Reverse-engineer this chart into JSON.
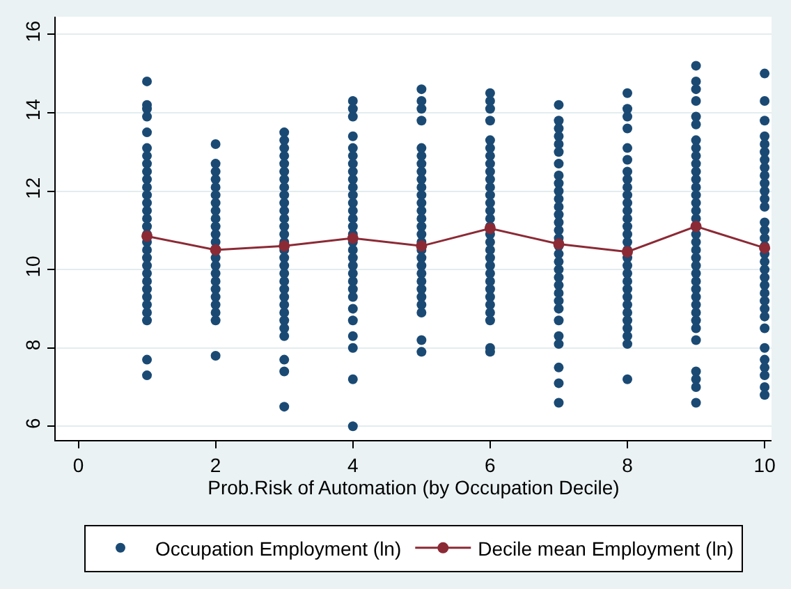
{
  "chart_data": {
    "type": "scatter",
    "xlabel": "Prob.Risk of Automation (by Occupation Decile)",
    "xlim": [
      -0.33,
      10.1
    ],
    "xticks": [
      0,
      2,
      4,
      6,
      8,
      10
    ],
    "ylim": [
      5.65,
      16.45
    ],
    "yticks": [
      6,
      8,
      10,
      12,
      14,
      16
    ],
    "grid": "y",
    "legend": "bottom",
    "series": [
      {
        "name": "Occupation Employment (ln)",
        "marker": "circle",
        "color": "#1a4a74",
        "x": [
          1,
          1,
          1,
          1,
          1,
          1,
          1,
          1,
          1,
          1,
          1,
          1,
          1,
          1,
          1,
          1,
          1,
          1,
          1,
          1,
          1,
          1,
          1,
          1,
          1,
          1,
          1,
          1,
          1,
          1,
          2,
          2,
          2,
          2,
          2,
          2,
          2,
          2,
          2,
          2,
          2,
          2,
          2,
          2,
          2,
          2,
          2,
          2,
          2,
          2,
          2,
          2,
          3,
          3,
          3,
          3,
          3,
          3,
          3,
          3,
          3,
          3,
          3,
          3,
          3,
          3,
          3,
          3,
          3,
          3,
          3,
          3,
          3,
          3,
          3,
          3,
          3,
          3,
          3,
          3,
          3,
          3,
          4,
          4,
          4,
          4,
          4,
          4,
          4,
          4,
          4,
          4,
          4,
          4,
          4,
          4,
          4,
          4,
          4,
          4,
          4,
          4,
          4,
          4,
          4,
          4,
          4,
          4,
          4,
          4,
          4,
          4,
          5,
          5,
          5,
          5,
          5,
          5,
          5,
          5,
          5,
          5,
          5,
          5,
          5,
          5,
          5,
          5,
          5,
          5,
          5,
          5,
          5,
          5,
          5,
          5,
          5,
          5,
          5,
          5,
          6,
          6,
          6,
          6,
          6,
          6,
          6,
          6,
          6,
          6,
          6,
          6,
          6,
          6,
          6,
          6,
          6,
          6,
          6,
          6,
          6,
          6,
          6,
          6,
          6,
          6,
          6,
          6,
          6,
          6,
          7,
          7,
          7,
          7,
          7,
          7,
          7,
          7,
          7,
          7,
          7,
          7,
          7,
          7,
          7,
          7,
          7,
          7,
          7,
          7,
          7,
          7,
          7,
          7,
          7,
          7,
          7,
          7,
          7,
          7,
          7,
          8,
          8,
          8,
          8,
          8,
          8,
          8,
          8,
          8,
          8,
          8,
          8,
          8,
          8,
          8,
          8,
          8,
          8,
          8,
          8,
          8,
          8,
          8,
          8,
          8,
          8,
          8,
          8,
          8,
          8,
          9,
          9,
          9,
          9,
          9,
          9,
          9,
          9,
          9,
          9,
          9,
          9,
          9,
          9,
          9,
          9,
          9,
          9,
          9,
          9,
          9,
          9,
          9,
          9,
          9,
          9,
          9,
          9,
          9,
          9,
          9,
          9,
          9,
          9,
          9,
          10,
          10,
          10,
          10,
          10,
          10,
          10,
          10,
          10,
          10,
          10,
          10,
          10,
          10,
          10,
          10,
          10,
          10,
          10,
          10,
          10,
          10,
          10,
          10,
          10,
          10,
          10,
          10,
          10,
          10,
          10,
          10,
          10
        ],
        "values": [
          14.8,
          14.2,
          14.1,
          13.9,
          13.5,
          13.1,
          12.9,
          12.7,
          12.5,
          12.3,
          12.1,
          11.9,
          11.7,
          11.5,
          11.3,
          11.1,
          10.9,
          10.7,
          10.5,
          10.3,
          10.1,
          9.9,
          9.7,
          9.5,
          9.3,
          9.1,
          8.9,
          8.7,
          7.7,
          7.3,
          13.2,
          12.7,
          12.5,
          12.3,
          12.1,
          11.9,
          11.7,
          11.5,
          11.3,
          11.1,
          10.9,
          10.7,
          10.3,
          10.1,
          9.9,
          9.7,
          9.5,
          9.3,
          9.1,
          8.9,
          8.7,
          7.8,
          13.5,
          13.3,
          13.1,
          12.9,
          12.7,
          12.5,
          12.3,
          12.1,
          11.9,
          11.7,
          11.5,
          11.3,
          11.1,
          10.9,
          10.7,
          10.5,
          10.3,
          10.1,
          9.9,
          9.7,
          9.5,
          9.3,
          9.1,
          8.9,
          8.7,
          8.5,
          8.3,
          7.7,
          7.4,
          6.5,
          14.3,
          14.1,
          13.9,
          13.4,
          13.1,
          12.9,
          12.7,
          12.5,
          12.3,
          12.1,
          11.9,
          11.7,
          11.5,
          11.3,
          11.1,
          10.9,
          10.7,
          10.5,
          10.3,
          10.1,
          9.9,
          9.7,
          9.5,
          9.3,
          9.0,
          8.7,
          8.3,
          8.0,
          7.2,
          6.0,
          14.6,
          14.3,
          14.1,
          13.8,
          13.1,
          12.9,
          12.7,
          12.5,
          12.3,
          12.1,
          11.9,
          11.7,
          11.5,
          11.3,
          11.1,
          10.9,
          10.7,
          10.5,
          10.3,
          10.1,
          9.9,
          9.7,
          9.5,
          9.3,
          9.1,
          8.9,
          8.2,
          7.9,
          14.5,
          14.3,
          14.1,
          13.8,
          13.3,
          13.1,
          12.9,
          12.7,
          12.5,
          12.3,
          12.1,
          11.9,
          11.7,
          11.5,
          11.3,
          11.1,
          10.9,
          10.7,
          10.5,
          10.3,
          10.1,
          9.9,
          9.7,
          9.5,
          9.3,
          9.1,
          8.9,
          8.7,
          8.0,
          7.9,
          14.2,
          13.8,
          13.6,
          13.4,
          13.2,
          13.0,
          12.7,
          12.4,
          12.2,
          12.0,
          11.8,
          11.6,
          11.4,
          11.2,
          11.0,
          10.8,
          10.6,
          10.4,
          10.2,
          10.0,
          9.8,
          9.6,
          9.4,
          9.2,
          9.0,
          8.7,
          8.3,
          8.1,
          7.5,
          7.1,
          6.6,
          14.5,
          14.1,
          13.9,
          13.6,
          13.1,
          12.8,
          12.5,
          12.3,
          12.1,
          11.9,
          11.7,
          11.5,
          11.3,
          11.1,
          10.9,
          10.7,
          10.5,
          10.3,
          10.1,
          9.9,
          9.7,
          9.5,
          9.3,
          9.1,
          8.9,
          8.7,
          8.5,
          8.3,
          8.1,
          7.2,
          15.2,
          14.8,
          14.6,
          14.3,
          13.9,
          13.7,
          13.3,
          13.1,
          12.9,
          12.7,
          12.5,
          12.3,
          12.1,
          11.9,
          11.7,
          11.5,
          11.3,
          10.9,
          10.7,
          10.5,
          10.3,
          10.1,
          9.9,
          9.7,
          9.5,
          9.3,
          9.1,
          8.9,
          8.7,
          8.5,
          8.2,
          7.4,
          7.2,
          7.0,
          6.6,
          15.0,
          14.3,
          13.8,
          13.4,
          13.2,
          13.0,
          12.8,
          12.6,
          12.4,
          12.2,
          12.0,
          11.8,
          11.6,
          11.2,
          11.0,
          10.8,
          10.6,
          10.4,
          10.2,
          10.0,
          9.8,
          9.6,
          9.4,
          9.2,
          9.0,
          8.8,
          8.5,
          8.0,
          7.7,
          7.5,
          7.3,
          7.0,
          6.8
        ]
      },
      {
        "name": "Decile mean Employment (ln)",
        "type": "line",
        "marker": "circle",
        "line_style": "solid",
        "color": "#8b2a35",
        "x": [
          1,
          2,
          3,
          4,
          5,
          6,
          7,
          8,
          9,
          10
        ],
        "values": [
          10.85,
          10.5,
          10.6,
          10.8,
          10.6,
          11.05,
          10.65,
          10.45,
          11.1,
          10.55
        ]
      }
    ]
  }
}
